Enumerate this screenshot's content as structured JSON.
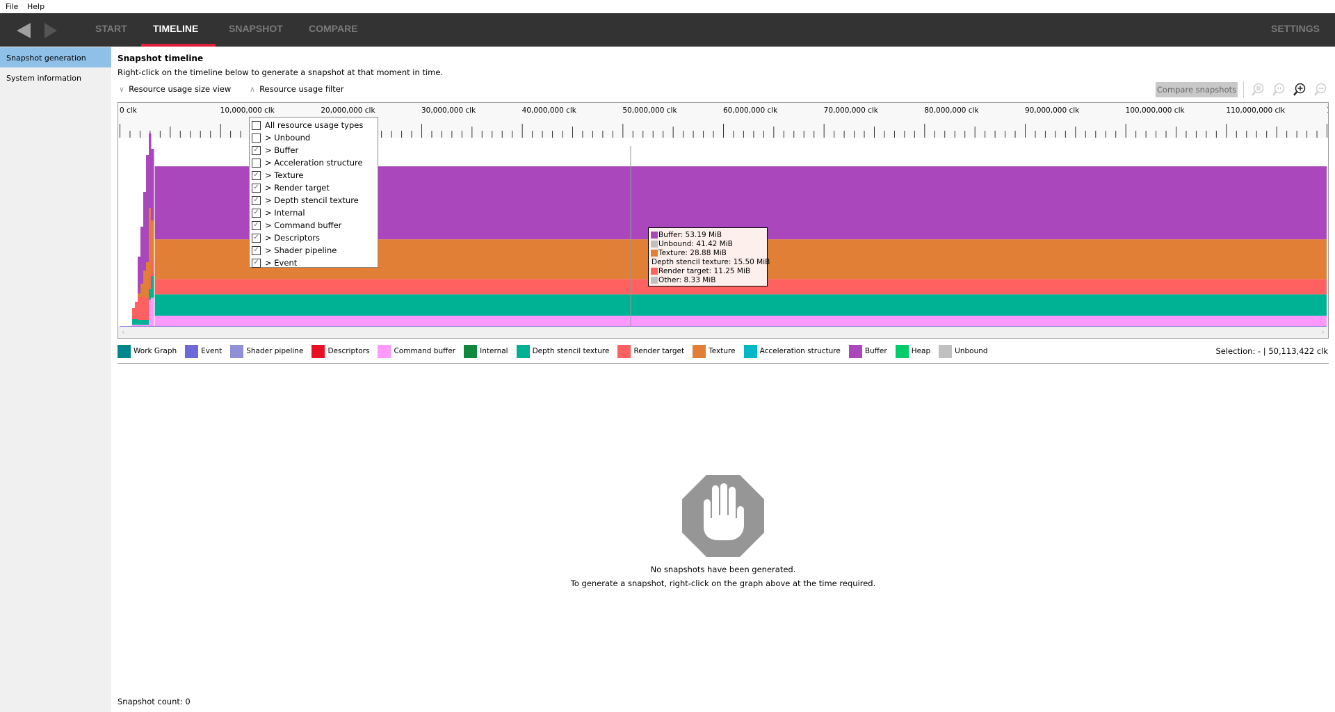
{
  "menu": {
    "file": "File",
    "help": "Help"
  },
  "nav": {
    "tabs": [
      {
        "label": "START"
      },
      {
        "label": "TIMELINE"
      },
      {
        "label": "SNAPSHOT"
      },
      {
        "label": "COMPARE"
      }
    ],
    "active_tab": "TIMELINE",
    "settings": "SETTINGS"
  },
  "sidebar": {
    "items": [
      {
        "label": "Snapshot generation",
        "selected": true
      },
      {
        "label": "System information",
        "selected": false
      }
    ]
  },
  "main": {
    "title": "Snapshot timeline",
    "subtitle": "Right-click on the timeline below to generate a snapshot at that moment in time.",
    "size_view_label": "Resource usage size view",
    "filter_label": "Resource usage filter",
    "compare_button": "Compare snapshots",
    "toolbar_icons": [
      "zoom-to-selection-icon",
      "zoom-reset-icon",
      "zoom-in-icon",
      "zoom-out-icon"
    ]
  },
  "filter": {
    "items": [
      {
        "label": "All resource usage types",
        "checked": false
      },
      {
        "label": "> Unbound",
        "checked": false
      },
      {
        "label": "> Buffer",
        "checked": true
      },
      {
        "label": "> Acceleration structure",
        "checked": false
      },
      {
        "label": "> Texture",
        "checked": true
      },
      {
        "label": "> Render target",
        "checked": true
      },
      {
        "label": "> Depth stencil texture",
        "checked": true
      },
      {
        "label": "> Internal",
        "checked": true
      },
      {
        "label": "> Command buffer",
        "checked": true
      },
      {
        "label": "> Descriptors",
        "checked": true
      },
      {
        "label": "> Shader pipeline",
        "checked": true
      },
      {
        "label": "> Event",
        "checked": true
      }
    ]
  },
  "chart_data": {
    "type": "area",
    "stacked": true,
    "x_unit": "clk",
    "x_ticks": [
      "0 clk",
      "10,000,000 clk",
      "20,000,000 clk",
      "30,000,000 clk",
      "40,000,000 clk",
      "50,000,000 clk",
      "60,000,000 clk",
      "70,000,000 clk",
      "80,000,000 clk",
      "90,000,000 clk",
      "100,000,000 clk",
      "110,000,000 clk",
      "1"
    ],
    "xlim": [
      0,
      120000000
    ],
    "cursor_clk": 50113422,
    "tooltip": [
      {
        "label": "Buffer: 53.19 MiB",
        "name": "Buffer",
        "value": 53.19,
        "color": "#ab47bc"
      },
      {
        "label": "Unbound: 41.42 MiB",
        "name": "Unbound",
        "value": 41.42,
        "color": "#c0c0c0"
      },
      {
        "label": "Texture: 28.88 MiB",
        "name": "Texture",
        "value": 28.88,
        "color": "#e07f35"
      },
      {
        "label": "Depth stencil texture: 15.50 MiB",
        "name": "Depth stencil texture",
        "value": 15.5,
        "color": "#00b294"
      },
      {
        "label": "Render target: 11.25 MiB",
        "name": "Render target",
        "value": 11.25,
        "color": "#ff6060"
      },
      {
        "label": "Other: 8.33 MiB",
        "name": "Other",
        "value": 8.33,
        "color": "#c0c0c0"
      }
    ],
    "stack_order_bottom_up": [
      {
        "name": "Command buffer",
        "value": 7.6,
        "color": "#ff99ff"
      },
      {
        "name": "Depth stencil texture",
        "value": 15.5,
        "color": "#00b294"
      },
      {
        "name": "Render target",
        "value": 11.25,
        "color": "#ff6060"
      },
      {
        "name": "Texture",
        "value": 28.88,
        "color": "#e07f35"
      },
      {
        "name": "Buffer",
        "value": 53.19,
        "color": "#ab47bc"
      }
    ]
  },
  "legend": [
    {
      "label": "Work Graph",
      "color": "#00868b"
    },
    {
      "label": "Event",
      "color": "#6a6ad8"
    },
    {
      "label": "Shader pipeline",
      "color": "#9090d8"
    },
    {
      "label": "Descriptors",
      "color": "#e81123"
    },
    {
      "label": "Command buffer",
      "color": "#ff99ff"
    },
    {
      "label": "Internal",
      "color": "#10893e"
    },
    {
      "label": "Depth stencil texture",
      "color": "#00b294"
    },
    {
      "label": "Render target",
      "color": "#ff6060"
    },
    {
      "label": "Texture",
      "color": "#e07f35"
    },
    {
      "label": "Acceleration structure",
      "color": "#00b7c3"
    },
    {
      "label": "Buffer",
      "color": "#ab47bc"
    },
    {
      "label": "Heap",
      "color": "#00cc6a"
    },
    {
      "label": "Unbound",
      "color": "#c0c0c0"
    }
  ],
  "selection": "Selection: - | 50,113,422 clk",
  "empty_state": {
    "icon": "stop-hand-icon",
    "line1": "No snapshots have been generated.",
    "line2": "To generate a snapshot, right-click on the graph above at the time required."
  },
  "snapshot_count": "Snapshot count: 0"
}
